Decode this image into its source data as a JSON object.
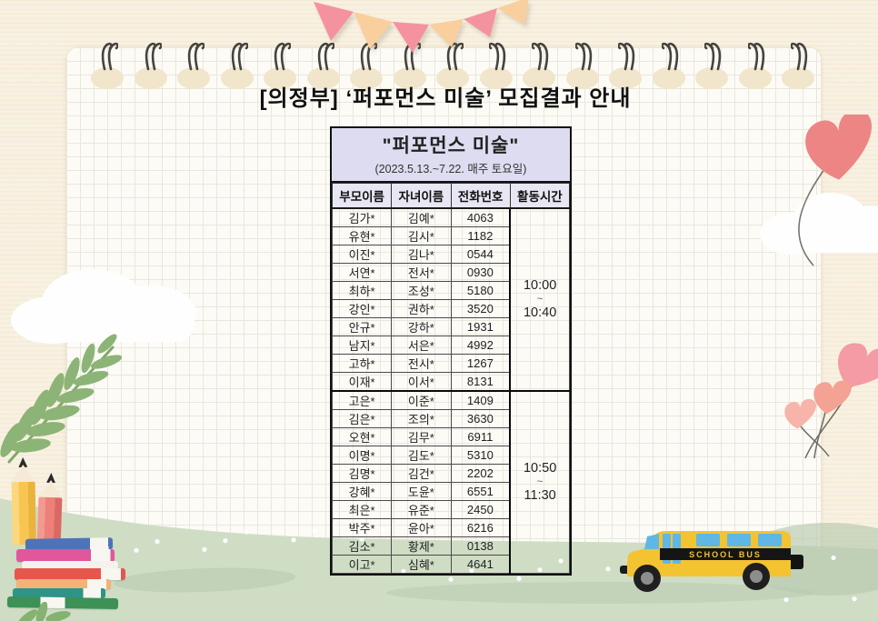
{
  "page_title": "[의정부] ‘퍼포먼스 미술’ 모집결과 안내",
  "table": {
    "title": "\"퍼포먼스 미술\"",
    "subtitle": "(2023.5.13.~7.22. 매주 토요일)",
    "columns": [
      "부모이름",
      "자녀이름",
      "전화번호",
      "활동시간"
    ],
    "groups": [
      {
        "time": [
          "10:00",
          "~",
          "10:40"
        ],
        "rows": [
          [
            "김가*",
            "김예*",
            "4063"
          ],
          [
            "유현*",
            "김시*",
            "1182"
          ],
          [
            "이진*",
            "김나*",
            "0544"
          ],
          [
            "서연*",
            "전서*",
            "0930"
          ],
          [
            "최하*",
            "조성*",
            "5180"
          ],
          [
            "강인*",
            "권하*",
            "3520"
          ],
          [
            "안규*",
            "강하*",
            "1931"
          ],
          [
            "남지*",
            "서은*",
            "4992"
          ],
          [
            "고하*",
            "전시*",
            "1267"
          ],
          [
            "이재*",
            "이서*",
            "8131"
          ]
        ]
      },
      {
        "time": [
          "10:50",
          "~",
          "11:30"
        ],
        "rows": [
          [
            "고은*",
            "이준*",
            "1409"
          ],
          [
            "김은*",
            "조의*",
            "3630"
          ],
          [
            "오현*",
            "김무*",
            "6911"
          ],
          [
            "이명*",
            "김도*",
            "5310"
          ],
          [
            "김명*",
            "김건*",
            "2202"
          ],
          [
            "강혜*",
            "도윤*",
            "6551"
          ],
          [
            "최은*",
            "유준*",
            "2450"
          ],
          [
            "박주*",
            "윤아*",
            "6216"
          ],
          [
            "김소*",
            "황제*",
            "0138"
          ],
          [
            "이고*",
            "심혜*",
            "4641"
          ]
        ]
      }
    ]
  },
  "bus": {
    "label": "SCHOOL BUS"
  },
  "decor": {
    "spiral_ring_count": 17,
    "icons": [
      "spiral-binding-icon",
      "bunting-flags-icon",
      "cloud-icon",
      "heart-balloon-icon",
      "fern-leaf-icon",
      "pencil-icon",
      "book-stack-icon",
      "school-bus-icon",
      "heart-bouquet-icon"
    ]
  },
  "colors": {
    "background": "#f8f1e1",
    "paper": "#fcfbf6",
    "grass": "#cfddc5",
    "table_title_bg": "#dddcf0",
    "table_header_bg": "#e7e6f2",
    "flag_pink": "#f4939f",
    "flag_peach": "#f9cf9d",
    "bus_yellow": "#f3c331",
    "heart_coral": "#ee8585"
  }
}
